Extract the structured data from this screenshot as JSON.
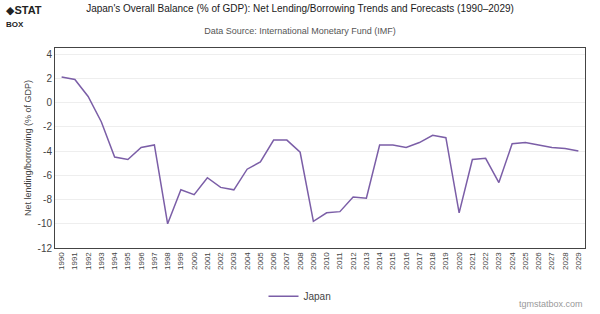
{
  "chart_data": {
    "type": "line",
    "title": "Japan's Overall Balance (% of GDP): Net Lending/Borrowing Trends and Forecasts (1990–2029)",
    "subtitle": "Data Source: International Monetary Fund (IMF)",
    "ylabel": "Net lending/borrowing (% of GDP)",
    "annotations": [
      "tgmstatbox.com",
      "◆STAT",
      "BOX"
    ],
    "x": [
      1990,
      1991,
      1992,
      1993,
      1994,
      1995,
      1996,
      1997,
      1998,
      1999,
      2000,
      2001,
      2002,
      2003,
      2004,
      2005,
      2006,
      2007,
      2008,
      2009,
      2010,
      2011,
      2012,
      2013,
      2014,
      2015,
      2016,
      2017,
      2018,
      2019,
      2020,
      2021,
      2022,
      2023,
      2024,
      2025,
      2026,
      2027,
      2028,
      2029
    ],
    "series": [
      {
        "name": "Japan",
        "color": "#7b5ea7",
        "values": [
          2.1,
          1.9,
          0.5,
          -1.6,
          -4.5,
          -4.7,
          -3.7,
          -3.5,
          -10.0,
          -7.2,
          -7.6,
          -6.2,
          -7.0,
          -7.2,
          -5.5,
          -4.9,
          -3.1,
          -3.1,
          -4.1,
          -9.8,
          -9.1,
          -9.0,
          -7.8,
          -7.9,
          -3.5,
          -3.5,
          -3.7,
          -3.3,
          -2.7,
          -2.9,
          -9.1,
          -4.7,
          -4.6,
          -6.6,
          -3.4,
          -3.3,
          -3.5,
          -3.7,
          -3.8,
          -4.0
        ]
      }
    ],
    "xlim": [
      1989.5,
      2029.5
    ],
    "xticks": [
      1990,
      1991,
      1992,
      1993,
      1994,
      1995,
      1996,
      1997,
      1998,
      1999,
      2000,
      2001,
      2002,
      2003,
      2004,
      2005,
      2006,
      2007,
      2008,
      2009,
      2010,
      2011,
      2012,
      2013,
      2014,
      2015,
      2016,
      2017,
      2018,
      2019,
      2020,
      2021,
      2022,
      2023,
      2024,
      2025,
      2026,
      2027,
      2028,
      2029
    ],
    "ylim": [
      -12,
      4.5
    ],
    "yticks": [
      4,
      2,
      0,
      -2,
      -4,
      -6,
      -8,
      -10,
      -12
    ],
    "grid": true,
    "legend": "bottom"
  }
}
